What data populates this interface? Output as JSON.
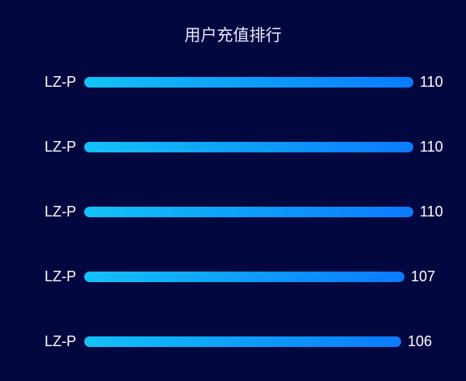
{
  "chart_data": {
    "type": "bar",
    "orientation": "horizontal",
    "title": "用户充值排行",
    "categories": [
      "LZ-P",
      "LZ-P",
      "LZ-P",
      "LZ-P",
      "LZ-P"
    ],
    "values": [
      110,
      110,
      110,
      107,
      106
    ],
    "xlim": [
      0,
      110
    ],
    "grid": false,
    "colors": {
      "background": "#02083f",
      "bar_start": "#13c2f7",
      "bar_end": "#0a7bff",
      "text": "#ffffff"
    }
  }
}
